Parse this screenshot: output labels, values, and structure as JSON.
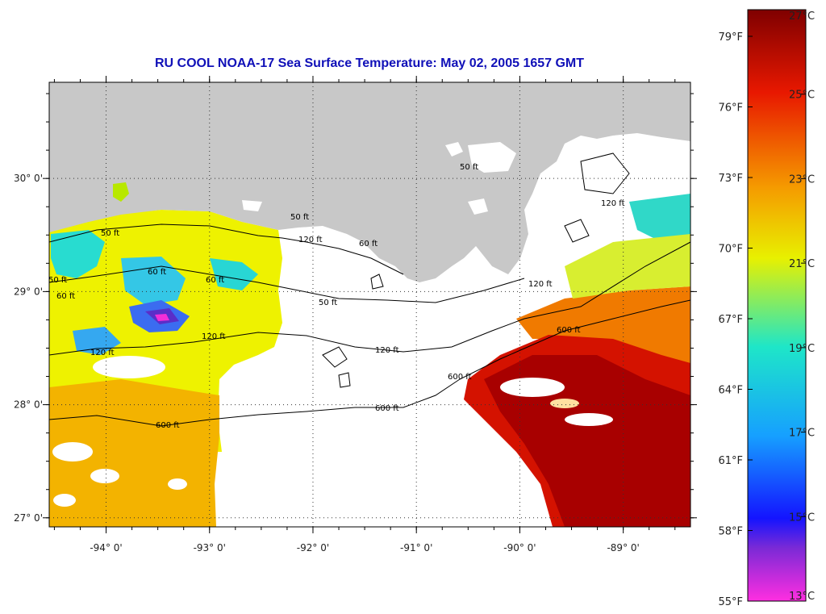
{
  "title": "RU COOL  NOAA-17  Sea Surface Temperature:  May 02, 2005 1657 GMT",
  "map": {
    "lon_range": [
      -94.55,
      -88.35
    ],
    "lat_range": [
      26.92,
      30.85
    ],
    "lon_ticks": [
      -94,
      -93,
      -92,
      -91,
      -90,
      -89
    ],
    "lat_ticks": [
      27,
      28,
      29,
      30
    ],
    "lon_labels": [
      "-94° 0'",
      "-93° 0'",
      "-92° 0'",
      "-91° 0'",
      "-90° 0'",
      "-89° 0'"
    ],
    "lat_labels": [
      "27° 0'",
      "28° 0'",
      "29° 0'",
      "30° 0'"
    ],
    "contour_labels": [
      "50 ft",
      "50 ft",
      "60 ft",
      "60 ft",
      "60 ft",
      "50 ft",
      "120 ft",
      "120 ft",
      "120 ft",
      "120 ft",
      "600 ft",
      "600 ft",
      "600 ft",
      "600 ft",
      "50 ft",
      "120 ft",
      "120 ft",
      "60 ft",
      "50 ft"
    ]
  },
  "colorbar": {
    "celsius_labels": [
      "27°C",
      "25°C",
      "23°C",
      "21°C",
      "19°C",
      "17°C",
      "15°C",
      "13°C"
    ],
    "fahrenheit_labels": [
      "79°F",
      "76°F",
      "73°F",
      "70°F",
      "67°F",
      "64°F",
      "61°F",
      "58°F",
      "55°F"
    ],
    "colors": {
      "t27": "#7f0000",
      "t25": "#e81800",
      "t23": "#f59a00",
      "t21": "#e8f000",
      "t19": "#1ee6c8",
      "t17": "#16a0ff",
      "t15": "#1414ff",
      "t14": "#7a2ad6",
      "t13": "#ff2ee0"
    }
  }
}
